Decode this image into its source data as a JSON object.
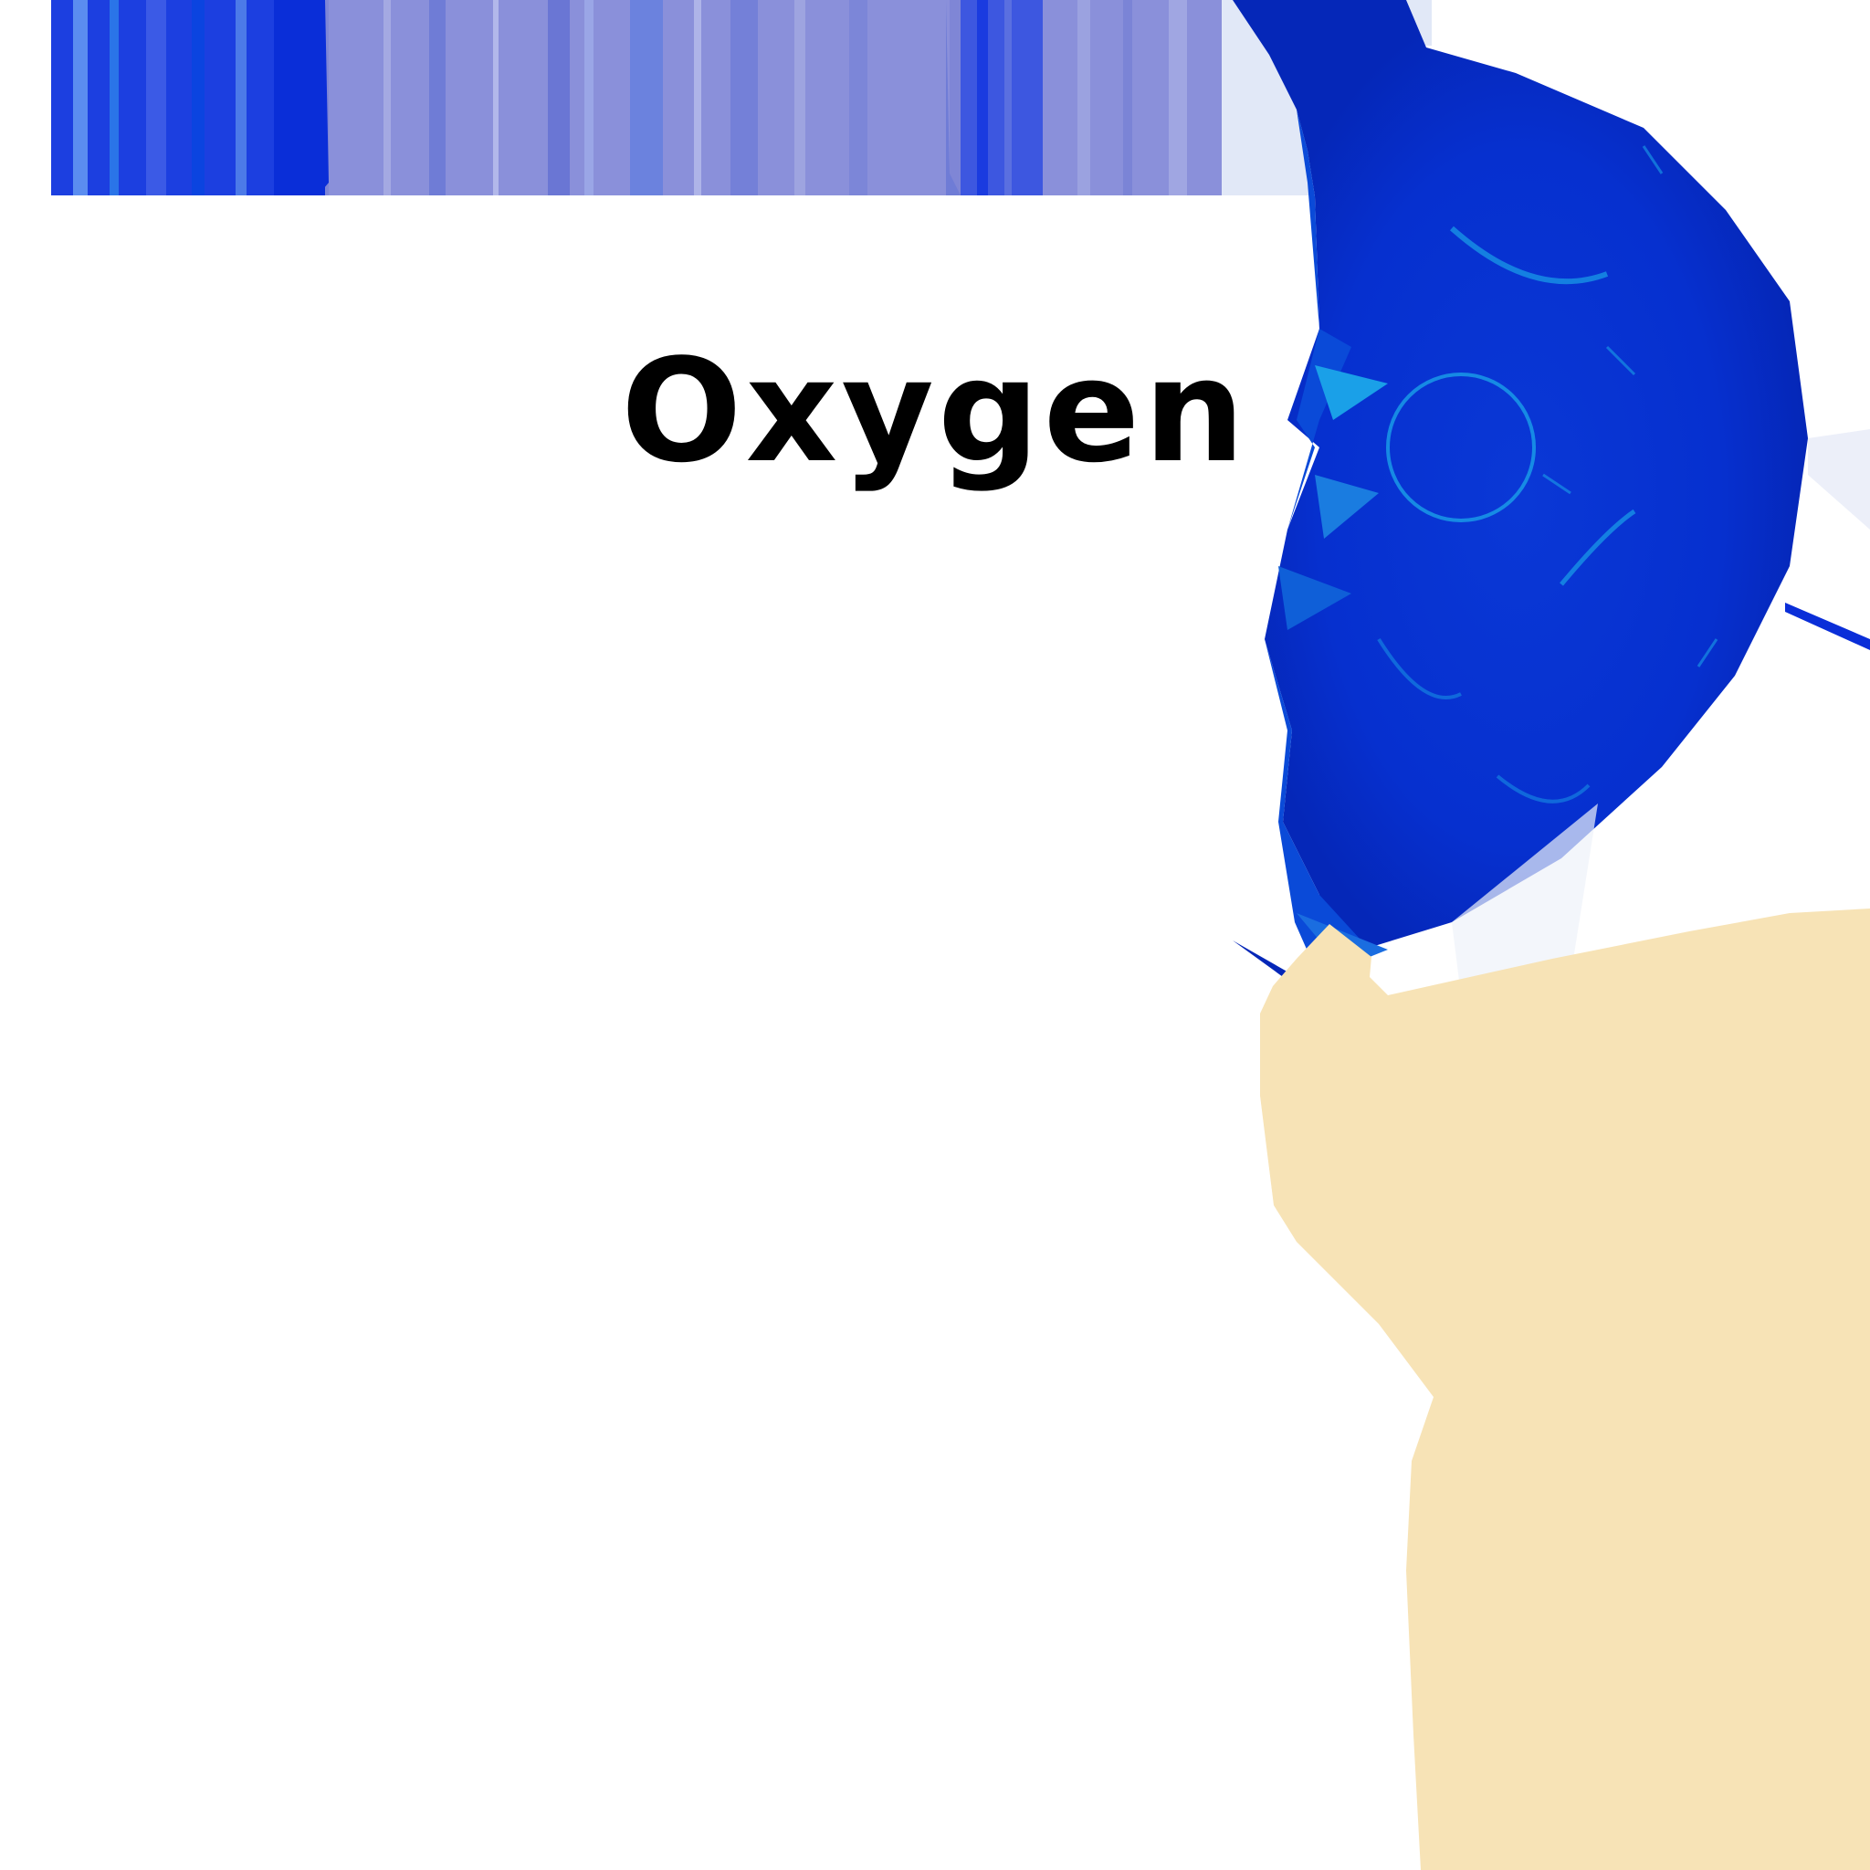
{
  "label": {
    "text": "Oxygen"
  },
  "colors": {
    "background": "#ffffff",
    "stripe_dark_blue": "#0a2ed8",
    "stripe_periwinkle": "#7f86d6",
    "stripe_pale": "#e1e8f7",
    "disc_blue": "#0630cf",
    "disc_highlight": "#1aa0e8",
    "cream_shape": "#f7e3b6",
    "label_text": "#000000"
  }
}
